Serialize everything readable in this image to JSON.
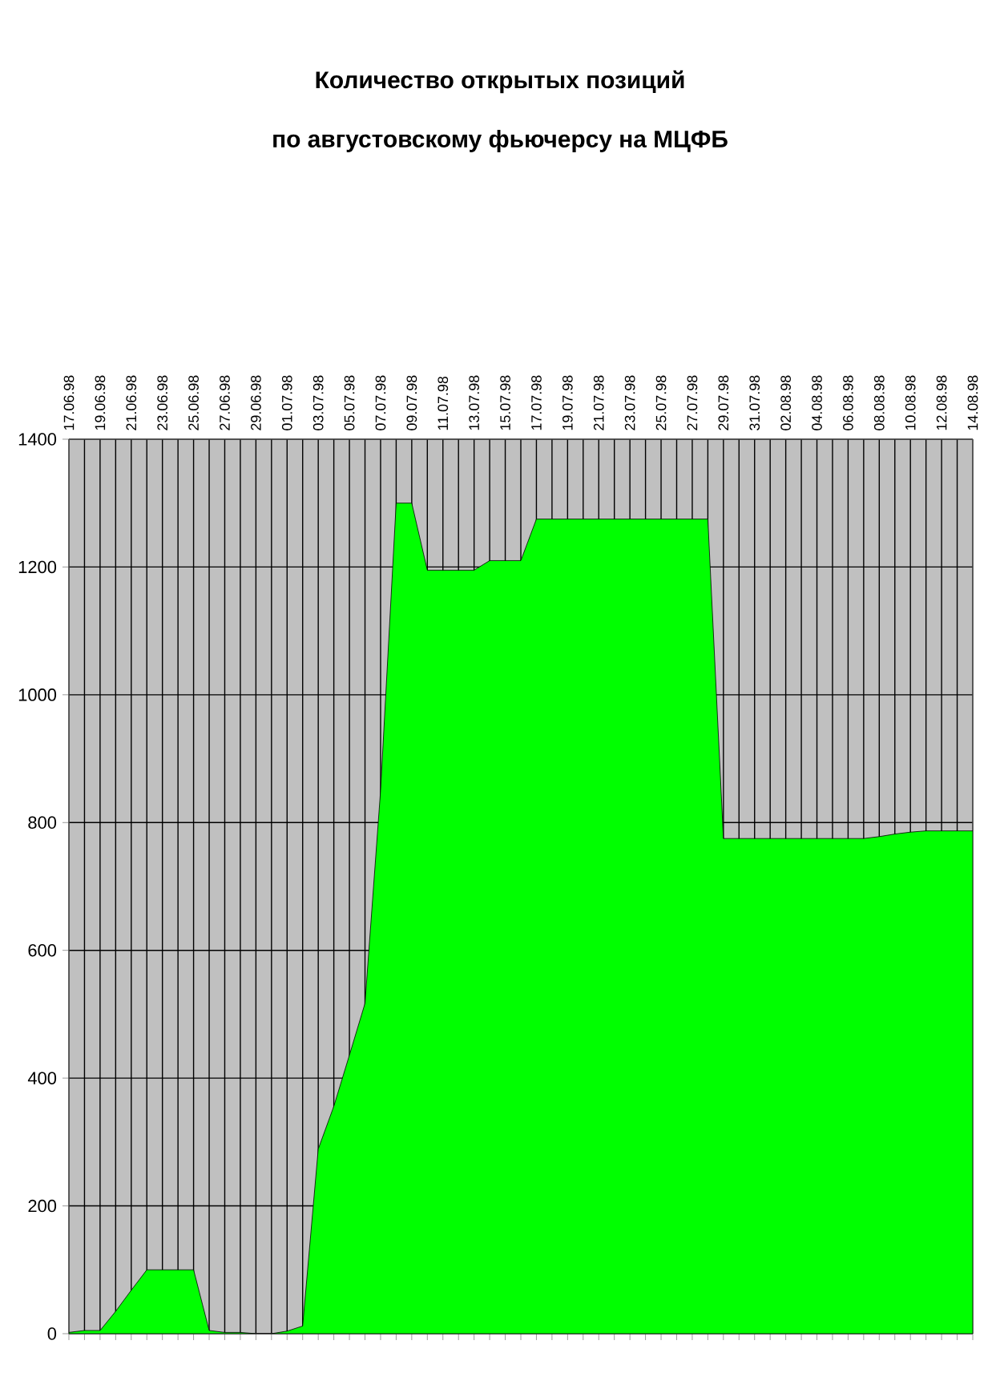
{
  "chart_data": {
    "type": "area",
    "title": "Количество открытых позиций",
    "subtitle": "по августовскому фьючерсу на МЦФБ",
    "categories": [
      "17.06.98",
      null,
      "19.06.98",
      null,
      "21.06.98",
      null,
      "23.06.98",
      null,
      "25.06.98",
      null,
      "27.06.98",
      null,
      "29.06.98",
      null,
      "01.07.98",
      null,
      "03.07.98",
      null,
      "05.07.98",
      null,
      "07.07.98",
      null,
      "09.07.98",
      null,
      "11.07.98",
      null,
      "13.07.98",
      null,
      "15.07.98",
      null,
      "17.07.98",
      null,
      "19.07.98",
      null,
      "21.07.98",
      null,
      "23.07.98",
      null,
      "25.07.98",
      null,
      "27.07.98",
      null,
      "29.07.98",
      null,
      "31.07.98",
      null,
      "02.08.98",
      null,
      "04.08.98",
      null,
      "06.08.98",
      null,
      "08.08.98",
      null,
      "10.08.98",
      null,
      "12.08.98",
      null,
      "14.08.98"
    ],
    "values": [
      2,
      5,
      5,
      35,
      68,
      100,
      100,
      100,
      100,
      5,
      2,
      2,
      0,
      0,
      4,
      12,
      289,
      356,
      436,
      517,
      850,
      1300,
      1300,
      1195,
      1195,
      1195,
      1195,
      1210,
      1210,
      1210,
      1275,
      1275,
      1275,
      1275,
      1275,
      1275,
      1275,
      1275,
      1275,
      1275,
      1275,
      1275,
      775,
      775,
      775,
      775,
      775,
      775,
      775,
      775,
      775,
      775,
      778,
      782,
      785,
      787,
      787,
      787,
      787
    ],
    "color": "#00ff00",
    "ylim": [
      0,
      1400
    ],
    "yticks": [
      0,
      200,
      400,
      600,
      800,
      1000,
      1200,
      1400
    ],
    "grid": true
  }
}
